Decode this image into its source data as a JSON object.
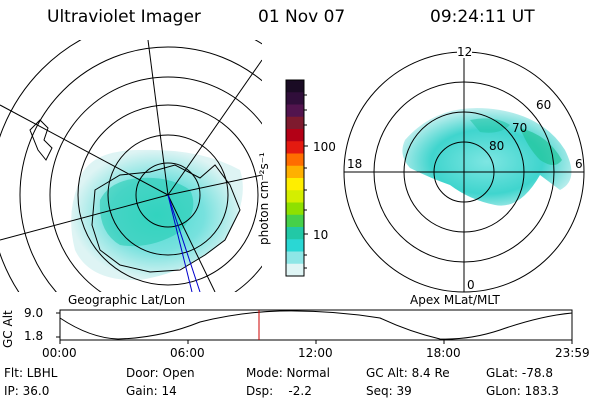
{
  "header": {
    "instrument": "Ultraviolet Imager",
    "date": "01 Nov 07",
    "time": "09:24:11 UT"
  },
  "colorbar": {
    "unit_label": "photon cm⁻²s⁻¹",
    "ticks": [
      "100",
      "10"
    ],
    "colors": [
      "#1a0b24",
      "#300e3a",
      "#52144e",
      "#7e1a2e",
      "#b30016",
      "#e41a10",
      "#ff6d00",
      "#ffb000",
      "#ffee00",
      "#d4ee00",
      "#8ee000",
      "#46d04a",
      "#22c8a6",
      "#2ad7d4",
      "#8ee6e6",
      "#dff5f5"
    ]
  },
  "left_panel": {
    "caption": "Geographic Lat/Lon"
  },
  "right_panel": {
    "caption": "Apex MLat/MLT",
    "mlt_labels": {
      "top": "12",
      "left": "18",
      "right": "6",
      "bottom": "0"
    },
    "lat_labels": [
      "60",
      "70",
      "80"
    ]
  },
  "altitude_plot": {
    "ylabel": "GC Alt",
    "yticks": [
      "9.0",
      "1.8"
    ],
    "xticks": [
      "00:00",
      "06:00",
      "12:00",
      "18:00",
      "23:59"
    ],
    "current_time_color": "#cc0000"
  },
  "status": {
    "flt": "Flt: LBHL",
    "ip": "IP: 36.0",
    "door": "Door: Open",
    "gain": "Gain: 14",
    "mode": "Mode: Normal",
    "dsp": "Dsp:    -2.2",
    "gcalt": "GC Alt: 8.4 Re",
    "seq": "Seq: 39",
    "glat": "GLat: -78.8",
    "glon": "GLon: 183.3"
  }
}
